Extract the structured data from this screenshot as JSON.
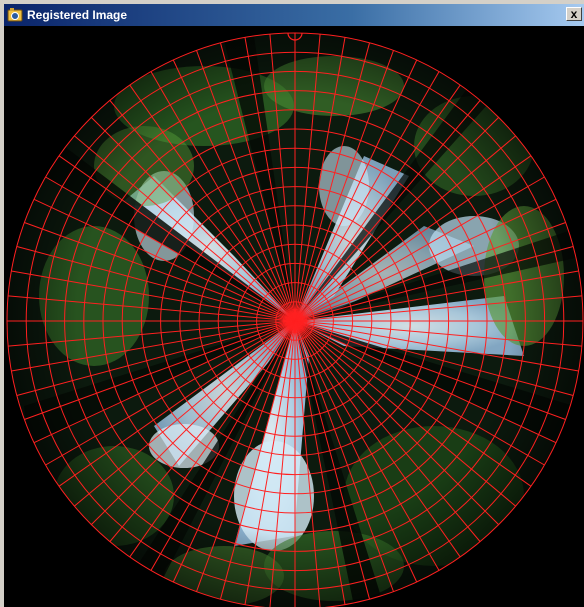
{
  "window": {
    "title": "Registered Image",
    "close_label": "x",
    "app_icon": "camera-app-icon",
    "close_icon": "close-icon"
  },
  "grid": {
    "color": "#ff2020",
    "rings": 15,
    "spokes": 72
  },
  "colors": {
    "title_gradient_start": "#0a246a",
    "title_gradient_end": "#a6caf0",
    "background": "#000000",
    "sky": "#c8e6f8",
    "canopy_dark": "#0c1a0e",
    "foliage": "#3e7a2c"
  }
}
